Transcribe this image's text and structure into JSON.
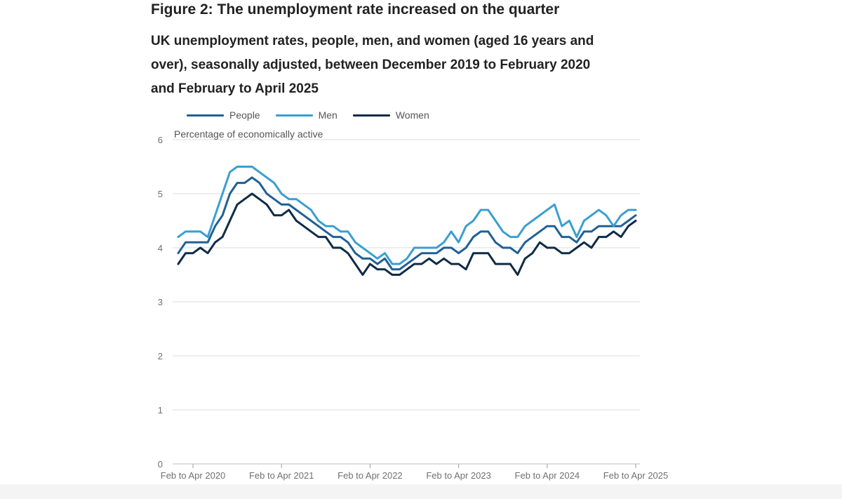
{
  "heading": "Figure 2: The unemployment rate increased on the quarter",
  "subtitle": "UK unemployment rates, people, men, and women (aged 16 years and over), seasonally adjusted, between December 2019 to February 2020 and February to April 2025",
  "colors": {
    "people": "#206095",
    "men": "#3a9fd0",
    "women": "#0f2b46",
    "grid": "#dcdcdc",
    "axis_text": "#707070"
  },
  "chart_data": {
    "type": "line",
    "title": "UK unemployment rates, people, men, and women (aged 16 years and over), seasonally adjusted, between December 2019 to February 2020 and February to April 2025",
    "ylabel": "Percentage of economically active",
    "xlabel": "",
    "ylim": [
      0,
      6
    ],
    "yticks": [
      0,
      1,
      2,
      3,
      4,
      5,
      6
    ],
    "x_tick_labels": [
      {
        "label": "Feb to Apr 2020",
        "index": 2
      },
      {
        "label": "Feb to Apr 2021",
        "index": 14
      },
      {
        "label": "Feb to Apr 2022",
        "index": 26
      },
      {
        "label": "Feb to Apr 2023",
        "index": 38
      },
      {
        "label": "Feb to Apr 2024",
        "index": 50
      },
      {
        "label": "Feb to Apr 2025",
        "index": 62
      }
    ],
    "grid": true,
    "legend_position": "top-left",
    "series": [
      {
        "name": "People",
        "color_key": "people",
        "values": [
          3.9,
          4.1,
          4.1,
          4.1,
          4.1,
          4.4,
          4.6,
          5.0,
          5.2,
          5.2,
          5.3,
          5.2,
          5.0,
          4.9,
          4.8,
          4.8,
          4.7,
          4.6,
          4.5,
          4.4,
          4.3,
          4.2,
          4.2,
          4.1,
          3.9,
          3.8,
          3.8,
          3.7,
          3.8,
          3.6,
          3.6,
          3.7,
          3.8,
          3.9,
          3.9,
          3.9,
          4.0,
          4.0,
          3.9,
          4.0,
          4.2,
          4.3,
          4.3,
          4.1,
          4.0,
          4.0,
          3.9,
          4.1,
          4.2,
          4.3,
          4.4,
          4.4,
          4.2,
          4.2,
          4.1,
          4.3,
          4.3,
          4.4,
          4.4,
          4.4,
          4.4,
          4.5,
          4.6
        ]
      },
      {
        "name": "Men",
        "color_key": "men",
        "values": [
          4.2,
          4.3,
          4.3,
          4.3,
          4.2,
          4.6,
          5.0,
          5.4,
          5.5,
          5.5,
          5.5,
          5.4,
          5.3,
          5.2,
          5.0,
          4.9,
          4.9,
          4.8,
          4.7,
          4.5,
          4.4,
          4.4,
          4.3,
          4.3,
          4.1,
          4.0,
          3.9,
          3.8,
          3.9,
          3.7,
          3.7,
          3.8,
          4.0,
          4.0,
          4.0,
          4.0,
          4.1,
          4.3,
          4.1,
          4.4,
          4.5,
          4.7,
          4.7,
          4.5,
          4.3,
          4.2,
          4.2,
          4.4,
          4.5,
          4.6,
          4.7,
          4.8,
          4.4,
          4.5,
          4.2,
          4.5,
          4.6,
          4.7,
          4.6,
          4.4,
          4.6,
          4.7,
          4.7
        ]
      },
      {
        "name": "Women",
        "color_key": "women",
        "values": [
          3.7,
          3.9,
          3.9,
          4.0,
          3.9,
          4.1,
          4.2,
          4.5,
          4.8,
          4.9,
          5.0,
          4.9,
          4.8,
          4.6,
          4.6,
          4.7,
          4.5,
          4.4,
          4.3,
          4.2,
          4.2,
          4.0,
          4.0,
          3.9,
          3.7,
          3.5,
          3.7,
          3.6,
          3.6,
          3.5,
          3.5,
          3.6,
          3.7,
          3.7,
          3.8,
          3.7,
          3.8,
          3.7,
          3.7,
          3.6,
          3.9,
          3.9,
          3.9,
          3.7,
          3.7,
          3.7,
          3.5,
          3.8,
          3.9,
          4.1,
          4.0,
          4.0,
          3.9,
          3.9,
          4.0,
          4.1,
          4.0,
          4.2,
          4.2,
          4.3,
          4.2,
          4.4,
          4.5
        ]
      }
    ]
  }
}
